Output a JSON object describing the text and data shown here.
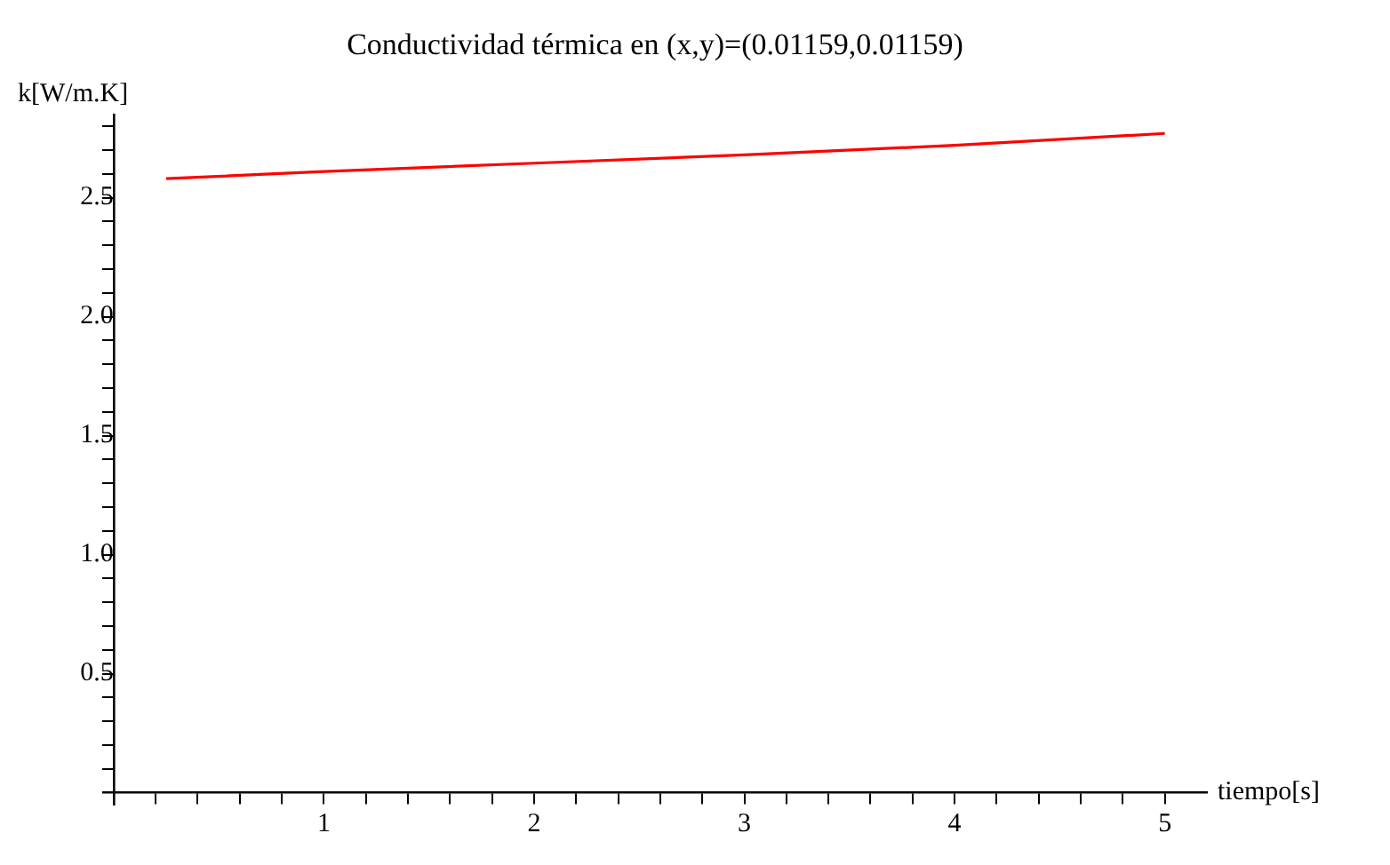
{
  "chart_data": {
    "type": "line",
    "title": "Conductividad térmica en (x,y)=(0.01159,0.01159)",
    "xlabel": "tiempo[s]",
    "ylabel": "k[W/m.K]",
    "series": [
      {
        "color": "#ff0000",
        "x": [
          0.25,
          1,
          2,
          3,
          4,
          5
        ],
        "values": [
          2.58,
          2.61,
          2.645,
          2.68,
          2.72,
          2.77
        ]
      }
    ],
    "xlim": [
      -0.05,
      5.2
    ],
    "ylim": [
      -0.05,
      2.85
    ],
    "xticks": [
      {
        "value": 0.2,
        "label": null
      },
      {
        "value": 0.4,
        "label": null
      },
      {
        "value": 0.6,
        "label": null
      },
      {
        "value": 0.8,
        "label": null
      },
      1,
      {
        "value": 1.2,
        "label": null
      },
      {
        "value": 1.4,
        "label": null
      },
      {
        "value": 1.6,
        "label": null
      },
      {
        "value": 1.8,
        "label": null
      },
      2,
      {
        "value": 2.2,
        "label": null
      },
      {
        "value": 2.4,
        "label": null
      },
      {
        "value": 2.6,
        "label": null
      },
      {
        "value": 2.8,
        "label": null
      },
      3,
      {
        "value": 3.2,
        "label": null
      },
      {
        "value": 3.4,
        "label": null
      },
      {
        "value": 3.6,
        "label": null
      },
      {
        "value": 3.8,
        "label": null
      },
      4,
      {
        "value": 4.2,
        "label": null
      },
      {
        "value": 4.4,
        "label": null
      },
      {
        "value": 4.6,
        "label": null
      },
      {
        "value": 4.8,
        "label": null
      },
      5
    ],
    "yticks": [
      {
        "value": 0.1,
        "label": null
      },
      {
        "value": 0.2,
        "label": null
      },
      {
        "value": 0.3,
        "label": null
      },
      {
        "value": 0.4,
        "label": null
      },
      {
        "value": 0.5,
        "label": "0.5"
      },
      {
        "value": 0.6,
        "label": null
      },
      {
        "value": 0.7,
        "label": null
      },
      {
        "value": 0.8,
        "label": null
      },
      {
        "value": 0.9,
        "label": null
      },
      {
        "value": 1.0,
        "label": "1.0"
      },
      {
        "value": 1.1,
        "label": null
      },
      {
        "value": 1.2,
        "label": null
      },
      {
        "value": 1.3,
        "label": null
      },
      {
        "value": 1.4,
        "label": null
      },
      {
        "value": 1.5,
        "label": "1.5"
      },
      {
        "value": 1.6,
        "label": null
      },
      {
        "value": 1.7,
        "label": null
      },
      {
        "value": 1.8,
        "label": null
      },
      {
        "value": 1.9,
        "label": null
      },
      {
        "value": 2.0,
        "label": "2.0"
      },
      {
        "value": 2.1,
        "label": null
      },
      {
        "value": 2.2,
        "label": null
      },
      {
        "value": 2.3,
        "label": null
      },
      {
        "value": 2.4,
        "label": null
      },
      {
        "value": 2.5,
        "label": "2.5"
      },
      {
        "value": 2.6,
        "label": null
      },
      {
        "value": 2.7,
        "label": null
      },
      {
        "value": 2.8,
        "label": null
      }
    ],
    "grid": false,
    "legend": false,
    "marker": "none",
    "line_style": "solid"
  }
}
